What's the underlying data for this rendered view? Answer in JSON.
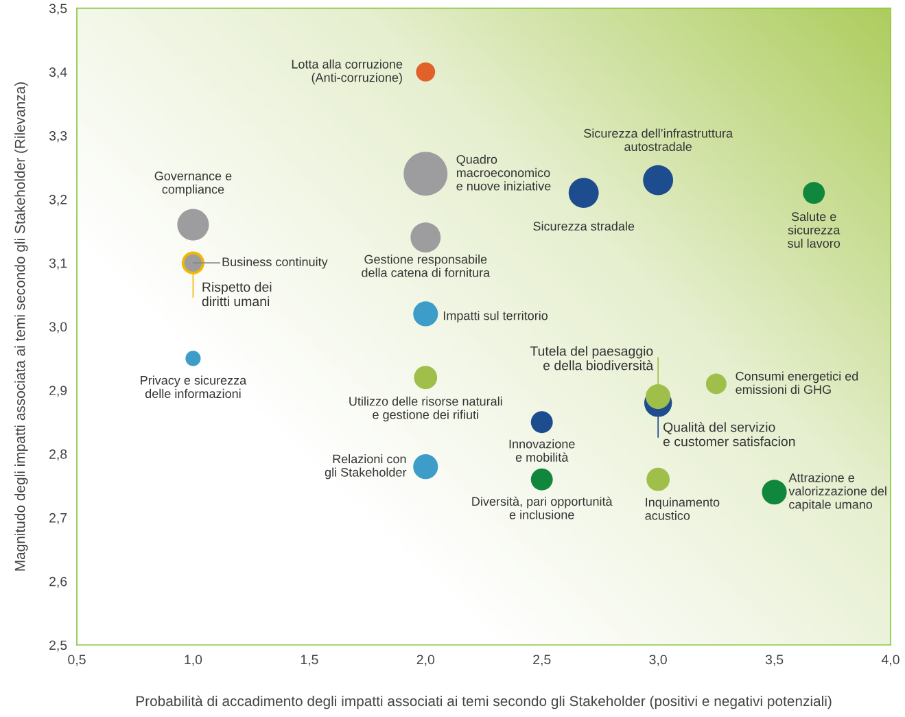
{
  "chart_data": {
    "type": "bubble",
    "xlabel": "Probabilità di accadimento degli impatti associati ai temi secondo gli Stakeholder (positivi e negativi potenziali)",
    "ylabel": "Magnitudo degli impatti associata ai temi secondo gli Stakeholder (Rilevanza)",
    "xlim": [
      0.5,
      4.0
    ],
    "xticks": [
      {
        "value": 0.5,
        "label": "0,5"
      },
      {
        "value": 1.0,
        "label": "1,0"
      },
      {
        "value": 1.5,
        "label": "1,5"
      },
      {
        "value": 2.0,
        "label": "2,0"
      },
      {
        "value": 2.5,
        "label": "2,5"
      },
      {
        "value": 3.0,
        "label": "3,0"
      },
      {
        "value": 3.5,
        "label": "3,5"
      },
      {
        "value": 4.0,
        "label": "4,0"
      }
    ],
    "ylim": [
      2.5,
      3.5
    ],
    "yticks": [
      {
        "value": 2.5,
        "label": "2,5"
      },
      {
        "value": 2.6,
        "label": "2,6"
      },
      {
        "value": 2.7,
        "label": "2,7"
      },
      {
        "value": 2.8,
        "label": "2,8"
      },
      {
        "value": 2.9,
        "label": "2,9"
      },
      {
        "value": 3.0,
        "label": "3,0"
      },
      {
        "value": 3.1,
        "label": "3,1"
      },
      {
        "value": 3.2,
        "label": "3,2"
      },
      {
        "value": 3.3,
        "label": "3,3"
      },
      {
        "value": 3.4,
        "label": "3,4"
      },
      {
        "value": 3.5,
        "label": "3,5"
      }
    ],
    "grid": false,
    "legend": false,
    "series": [
      {
        "name": "Lotta alla corruzione\n(Anti-corruzione)",
        "color": "#e0622a",
        "x": [
          2.0
        ],
        "values": [
          3.4
        ],
        "sizes": [
          0.19
        ]
      },
      {
        "name": "Quadro\nmacroeconomico\ne nuove iniziative",
        "color": "#9d9d9f",
        "x": [
          2.0
        ],
        "values": [
          3.24
        ],
        "sizes": [
          1
        ]
      },
      {
        "name": "Sicurezza stradale",
        "color": "#1d4c8f",
        "x": [
          2.68
        ],
        "values": [
          3.21
        ],
        "sizes": [
          0.47
        ]
      },
      {
        "name": "Sicurezza dell’infrastruttura\nautostradale",
        "color": "#1d4c8f",
        "x": [
          3.0
        ],
        "values": [
          3.23
        ],
        "sizes": [
          0.47
        ]
      },
      {
        "name": "Salute e\nsicurezza\nsul lavoro",
        "color": "#10873c",
        "x": [
          3.67
        ],
        "values": [
          3.21
        ],
        "sizes": [
          0.25
        ]
      },
      {
        "name": "Governance e\ncompliance",
        "color": "#9d9d9f",
        "x": [
          1.0
        ],
        "values": [
          3.16
        ],
        "sizes": [
          0.52
        ]
      },
      {
        "name": "Rispetto dei\ndiritti umani",
        "color": "#f2b705",
        "x": [
          1.0
        ],
        "values": [
          3.1
        ],
        "sizes": [
          0.27
        ]
      },
      {
        "name": "Business continuity",
        "color": "#9d9d9f",
        "x": [
          1.0
        ],
        "values": [
          3.1
        ],
        "sizes": [
          0.16
        ]
      },
      {
        "name": "Gestione responsabile\ndella catena di fornitura",
        "color": "#9d9d9f",
        "x": [
          2.0
        ],
        "values": [
          3.14
        ],
        "sizes": [
          0.47
        ]
      },
      {
        "name": "Impatti sul territorio",
        "color": "#3d9dc8",
        "x": [
          2.0
        ],
        "values": [
          3.02
        ],
        "sizes": [
          0.32
        ]
      },
      {
        "name": "Privacy e sicurezza\ndelle informazioni",
        "color": "#3d9dc8",
        "x": [
          1.0
        ],
        "values": [
          2.95
        ],
        "sizes": [
          0.12
        ]
      },
      {
        "name": "Utilizzo delle risorse naturali\ne gestione dei rifiuti",
        "color": "#9fbf4a",
        "x": [
          2.0
        ],
        "values": [
          2.92
        ],
        "sizes": [
          0.28
        ]
      },
      {
        "name": "Qualità del servizio\ne customer satisfacion",
        "color": "#1d4c8f",
        "x": [
          3.0
        ],
        "values": [
          2.88
        ],
        "sizes": [
          0.4
        ]
      },
      {
        "name": "Tutela del paesaggio\ne della biodiversità",
        "color": "#9fbf4a",
        "x": [
          3.0
        ],
        "values": [
          2.89
        ],
        "sizes": [
          0.32
        ]
      },
      {
        "name": "Consumi energetici ed\nemissioni di GHG",
        "color": "#9fbf4a",
        "x": [
          3.25
        ],
        "values": [
          2.91
        ],
        "sizes": [
          0.22
        ]
      },
      {
        "name": "Innovazione\ne mobilità",
        "color": "#1d4c8f",
        "x": [
          2.5
        ],
        "values": [
          2.85
        ],
        "sizes": [
          0.25
        ]
      },
      {
        "name": "Relazioni con\ngli Stakeholder",
        "color": "#3d9dc8",
        "x": [
          2.0
        ],
        "values": [
          2.78
        ],
        "sizes": [
          0.32
        ]
      },
      {
        "name": "Diversità, pari opportunità\ne inclusione",
        "color": "#10873c",
        "x": [
          2.5
        ],
        "values": [
          2.76
        ],
        "sizes": [
          0.25
        ]
      },
      {
        "name": "Inquinamento\nacustico",
        "color": "#9fbf4a",
        "x": [
          3.0
        ],
        "values": [
          2.76
        ],
        "sizes": [
          0.28
        ]
      },
      {
        "name": "Attrazione e\nvalorizzazione del\ncapitale umano",
        "color": "#10873c",
        "x": [
          3.5
        ],
        "values": [
          2.74
        ],
        "sizes": [
          0.32
        ]
      }
    ]
  }
}
